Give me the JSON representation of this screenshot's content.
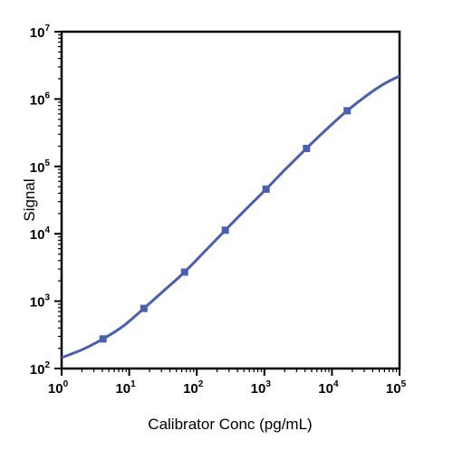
{
  "chart_data": {
    "type": "line",
    "title": "",
    "xlabel": "Calibrator Conc (pg/mL)",
    "ylabel": "Signal",
    "xscale": "log",
    "yscale": "log",
    "xlim": [
      1,
      100000
    ],
    "ylim": [
      100,
      10000000
    ],
    "grid": false,
    "legend": "none",
    "x_ticks": [
      {
        "base": "10",
        "exp": "0"
      },
      {
        "base": "10",
        "exp": "1"
      },
      {
        "base": "10",
        "exp": "2"
      },
      {
        "base": "10",
        "exp": "3"
      },
      {
        "base": "10",
        "exp": "4"
      },
      {
        "base": "10",
        "exp": "5"
      }
    ],
    "y_ticks": [
      {
        "base": "10",
        "exp": "2"
      },
      {
        "base": "10",
        "exp": "3"
      },
      {
        "base": "10",
        "exp": "4"
      },
      {
        "base": "10",
        "exp": "5"
      },
      {
        "base": "10",
        "exp": "6"
      },
      {
        "base": "10",
        "exp": "7"
      }
    ],
    "color": "#4a5fae",
    "points": [
      {
        "x": 4.1,
        "y": 275
      },
      {
        "x": 16.5,
        "y": 780
      },
      {
        "x": 66,
        "y": 2700
      },
      {
        "x": 264,
        "y": 11300
      },
      {
        "x": 1060,
        "y": 46000
      },
      {
        "x": 4200,
        "y": 185000
      },
      {
        "x": 16800,
        "y": 670000
      }
    ],
    "fit_curve": [
      {
        "x": 1,
        "y": 145
      },
      {
        "x": 2,
        "y": 190
      },
      {
        "x": 4.1,
        "y": 275
      },
      {
        "x": 8,
        "y": 420
      },
      {
        "x": 16.5,
        "y": 780
      },
      {
        "x": 33,
        "y": 1450
      },
      {
        "x": 66,
        "y": 2700
      },
      {
        "x": 132,
        "y": 5500
      },
      {
        "x": 264,
        "y": 11300
      },
      {
        "x": 530,
        "y": 23000
      },
      {
        "x": 1060,
        "y": 46000
      },
      {
        "x": 2100,
        "y": 93000
      },
      {
        "x": 4200,
        "y": 185000
      },
      {
        "x": 8400,
        "y": 360000
      },
      {
        "x": 16800,
        "y": 670000
      },
      {
        "x": 33500,
        "y": 1150000
      },
      {
        "x": 60000,
        "y": 1700000
      },
      {
        "x": 100000,
        "y": 2200000
      }
    ]
  }
}
